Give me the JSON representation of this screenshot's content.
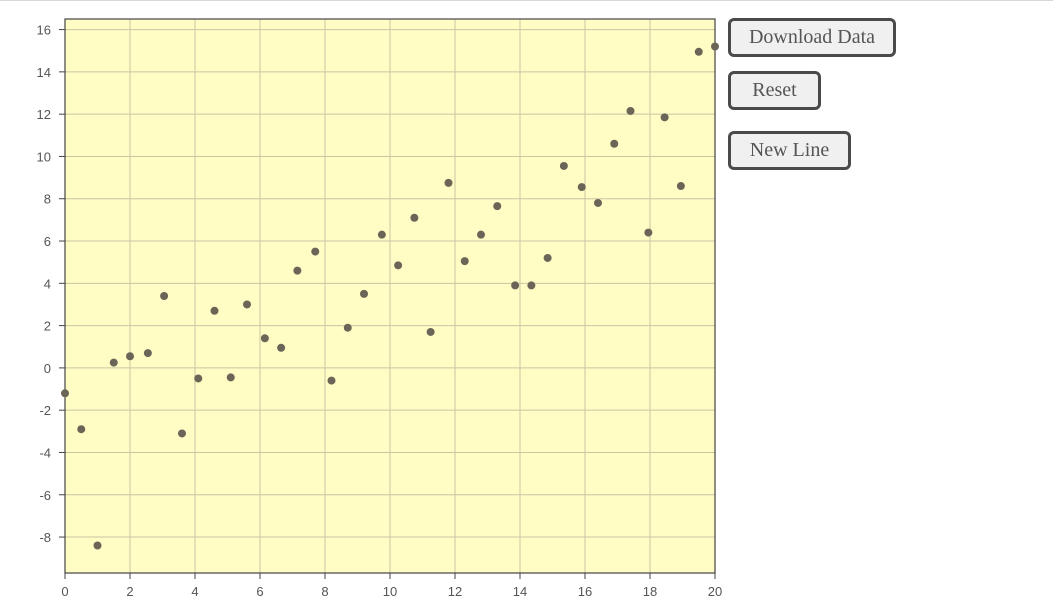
{
  "controls": {
    "download_label": "Download Data",
    "reset_label": "Reset",
    "new_line_label": "New Line"
  },
  "colors": {
    "plot_background": "#fffcc4",
    "point": "#6b6558",
    "grid": "#c9c6a4",
    "axis": "#444444"
  },
  "chart_data": {
    "type": "scatter",
    "title": "",
    "xlabel": "",
    "ylabel": "",
    "xlim": [
      0,
      20
    ],
    "ylim": [
      -9.7,
      16.5
    ],
    "x_ticks": [
      0,
      2,
      4,
      6,
      8,
      10,
      12,
      14,
      16,
      18,
      20
    ],
    "y_ticks": [
      -8,
      -6,
      -4,
      -2,
      0,
      2,
      4,
      6,
      8,
      10,
      12,
      14,
      16
    ],
    "grid": true,
    "legend": "none",
    "points": [
      {
        "x": 0.0,
        "y": -1.2
      },
      {
        "x": 0.5,
        "y": -2.9
      },
      {
        "x": 1.0,
        "y": -8.4
      },
      {
        "x": 1.5,
        "y": 0.25
      },
      {
        "x": 2.0,
        "y": 0.55
      },
      {
        "x": 2.55,
        "y": 0.7
      },
      {
        "x": 3.05,
        "y": 3.4
      },
      {
        "x": 3.6,
        "y": -3.1
      },
      {
        "x": 4.1,
        "y": -0.5
      },
      {
        "x": 4.6,
        "y": 2.7
      },
      {
        "x": 5.1,
        "y": -0.45
      },
      {
        "x": 5.6,
        "y": 3.0
      },
      {
        "x": 6.15,
        "y": 1.4
      },
      {
        "x": 6.65,
        "y": 0.95
      },
      {
        "x": 7.15,
        "y": 4.6
      },
      {
        "x": 7.7,
        "y": 5.5
      },
      {
        "x": 8.2,
        "y": -0.6
      },
      {
        "x": 8.7,
        "y": 1.9
      },
      {
        "x": 9.2,
        "y": 3.5
      },
      {
        "x": 9.75,
        "y": 6.3
      },
      {
        "x": 10.25,
        "y": 4.85
      },
      {
        "x": 10.75,
        "y": 7.1
      },
      {
        "x": 11.25,
        "y": 1.7
      },
      {
        "x": 11.8,
        "y": 8.75
      },
      {
        "x": 12.3,
        "y": 5.05
      },
      {
        "x": 12.8,
        "y": 6.3
      },
      {
        "x": 13.3,
        "y": 7.65
      },
      {
        "x": 13.85,
        "y": 3.9
      },
      {
        "x": 14.35,
        "y": 3.9
      },
      {
        "x": 14.85,
        "y": 5.2
      },
      {
        "x": 15.35,
        "y": 9.55
      },
      {
        "x": 15.9,
        "y": 8.55
      },
      {
        "x": 16.4,
        "y": 7.8
      },
      {
        "x": 16.9,
        "y": 10.6
      },
      {
        "x": 17.4,
        "y": 12.15
      },
      {
        "x": 17.95,
        "y": 6.4
      },
      {
        "x": 18.45,
        "y": 11.85
      },
      {
        "x": 18.95,
        "y": 8.6
      },
      {
        "x": 19.5,
        "y": 14.95
      },
      {
        "x": 20.0,
        "y": 15.2
      }
    ]
  }
}
